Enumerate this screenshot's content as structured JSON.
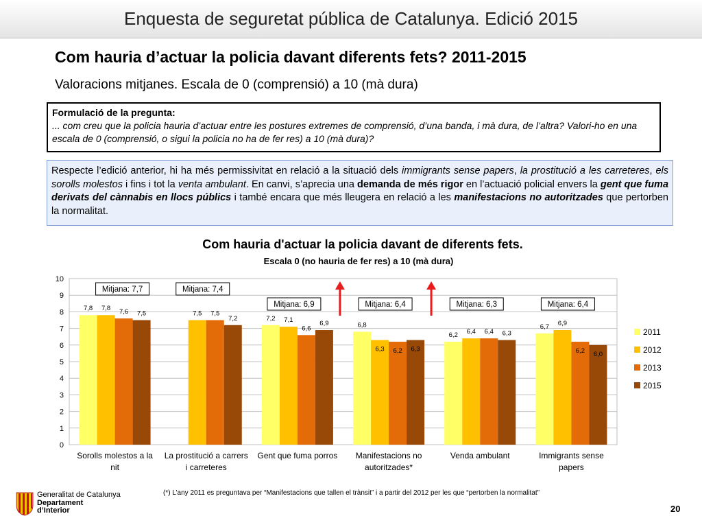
{
  "header": {
    "title": "Enquesta de seguretat pública de Catalunya. Edició 2015"
  },
  "main_title": "Com hauria d’actuar la policia davant diferents fets? 2011-2015",
  "subtitle": "Valoracions mitjanes. Escala de 0 (comprensió) a 10 (mà dura)",
  "question_box": {
    "heading": "Formulació de la pregunta:",
    "text": "... com creu que la policia hauria d’actuar entre les postures extremes de comprensió, d’una banda, i mà dura, de l’altra? Valori-ho en una escala de 0 (comprensió, o sigui la policia no ha de fer res) a 10 (mà dura)?"
  },
  "comment_box": {
    "p1": "Respecte l’edició anterior, hi ha més permissivitat en relació a la situació dels ",
    "i1": "immigrants sense papers",
    "p2": ", ",
    "i2": "la prostitució a les carreteres",
    "p3": ", ",
    "i3": "els sorolls molestos",
    "p4": " i fins i tot la ",
    "i4": "venta ambulant",
    "p5": ". En canvi, s’aprecia una ",
    "b1": "demanda de més rigor",
    "p6": " en l’actuació policial envers la ",
    "bi1": "gent que fuma derivats del cànnabis en llocs públics",
    "p7": " i també encara que més lleugera en relació a les ",
    "bi2": "manifestacions no autoritzades",
    "p8": " que pertorben la normalitat."
  },
  "chart_data": {
    "type": "bar",
    "title": "Com hauria d'actuar la policia davant de diferents fets.",
    "subtitle": "Escala 0 (no hauria de fer res) a 10 (mà dura)",
    "categories": [
      [
        "Sorolls molestos a la",
        "nit"
      ],
      [
        "La prostitució a carrers",
        "i carreteres"
      ],
      [
        "Gent que fuma porros"
      ],
      [
        "Manifestacions no",
        "autoritzades*"
      ],
      [
        "Venda ambulant"
      ],
      [
        "Immigrants sense",
        "papers"
      ]
    ],
    "series": [
      {
        "name": "2011",
        "color": "#ffff66",
        "values": [
          7.8,
          null,
          7.2,
          6.8,
          6.2,
          6.7
        ],
        "labels": [
          "7,8",
          "",
          "7,2",
          "6,8",
          "6,2",
          "6,7"
        ]
      },
      {
        "name": "2012",
        "color": "#ffc000",
        "values": [
          7.8,
          7.5,
          7.1,
          6.3,
          6.4,
          6.9
        ],
        "labels": [
          "7,8",
          "7,5",
          "7,1",
          "6,3",
          "6,4",
          "6,9"
        ]
      },
      {
        "name": "2013",
        "color": "#e36c09",
        "values": [
          7.6,
          7.5,
          6.6,
          6.2,
          6.4,
          6.2
        ],
        "labels": [
          "7,6",
          "7,5",
          "6,6",
          "6,2",
          "6,4",
          "6,2"
        ]
      },
      {
        "name": "2015",
        "color": "#984807",
        "values": [
          7.5,
          7.2,
          6.9,
          6.3,
          6.3,
          6.0
        ],
        "labels": [
          "7,5",
          "7,2",
          "6,9",
          "6,3",
          "6,3",
          "6,0"
        ]
      }
    ],
    "averages": [
      "Mitjana: 7,7",
      "Mitjana: 7,4",
      "Mitjana: 6,9",
      "Mitjana: 6,4",
      "Mitjana: 6,3",
      "Mitjana: 6,4"
    ],
    "increase_arrows": [
      false,
      false,
      true,
      true,
      false,
      false
    ],
    "arrow_color": "#e81c1c",
    "ylim": [
      0,
      10
    ],
    "yticks": [
      0,
      1,
      2,
      3,
      4,
      5,
      6,
      7,
      8,
      9,
      10
    ],
    "grid": true,
    "legend_position": "right"
  },
  "footer": {
    "org_line1": "Generalitat de Catalunya",
    "org_line2": "Departament",
    "org_line3": "d’Interior",
    "footnote": "(*) L’any 2011 es  preguntava  per “Manifestacions que tallen el trànsit” i a partir del 2012 per les que “pertorben la normalitat”",
    "page_number": "20"
  }
}
